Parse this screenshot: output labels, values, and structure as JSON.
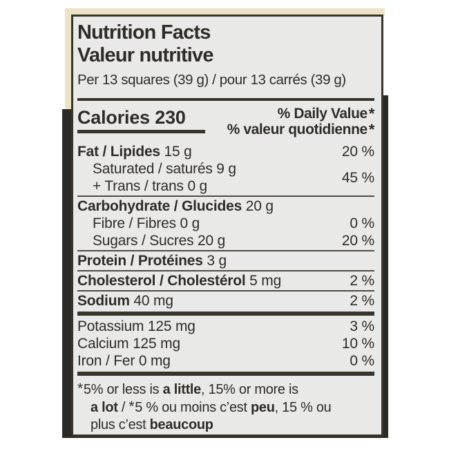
{
  "colors": {
    "label_background": "#e9e9e7",
    "label_border": "#38342b",
    "text": "#2e2c27",
    "package_dark": "#2c2a25",
    "package_cream": "#ece3c6"
  },
  "nutrition_label": {
    "title_en": "Nutrition Facts",
    "title_fr": "Valeur nutritive",
    "serving_line": "Per 13 squares (39 g) / pour 13 carrés (39 g)",
    "calories": {
      "label": "Calories",
      "value": "230"
    },
    "daily_value_header": {
      "en": "% Daily Value",
      "fr": "% valeur quotidienne",
      "star": "*"
    },
    "nutrient_rows": [
      {
        "style": "bold-lead",
        "bold": "Fat / Lipides",
        "rest": " 15 g",
        "dv": "20 %",
        "sep_after": ""
      },
      {
        "style": "sub-group",
        "lines": [
          "Saturated / saturés 9 g",
          "+ Trans / trans 0 g"
        ],
        "dv": "45 %",
        "sep_after": "thin"
      },
      {
        "style": "bold-lead",
        "bold": "Carbohydrate / Glucides",
        "rest": " 20 g",
        "dv": "",
        "sep_after": ""
      },
      {
        "style": "sub",
        "text": "Fibre / Fibres 0 g",
        "dv": "0 %",
        "sep_after": ""
      },
      {
        "style": "sub",
        "text": "Sugars / Sucres 20 g",
        "dv": "20 %",
        "sep_after": "thin"
      },
      {
        "style": "bold-lead",
        "bold": "Protein / Protéines",
        "rest": " 3 g",
        "dv": "",
        "sep_after": "thin"
      },
      {
        "style": "bold-lead",
        "bold": "Cholesterol / Cholestérol",
        "rest": " 5 mg",
        "dv": "2 %",
        "sep_after": "thin"
      },
      {
        "style": "bold-lead",
        "bold": "Sodium",
        "rest": " 40 mg",
        "dv": "2 %",
        "sep_after": "thick"
      },
      {
        "style": "plain",
        "text": "Potassium 125 mg",
        "dv": "3 %",
        "sep_after": ""
      },
      {
        "style": "plain",
        "text": "Calcium 125 mg",
        "dv": "10 %",
        "sep_after": ""
      },
      {
        "style": "plain",
        "text": "Iron / Fer 0 mg",
        "dv": "0 %",
        "sep_after": "thick"
      }
    ],
    "footnote_lines": [
      {
        "indented": false,
        "segments": [
          {
            "text": "*",
            "cls": "star"
          },
          {
            "text": "5% or less is ",
            "cls": ""
          },
          {
            "text": "a little",
            "cls": "b"
          },
          {
            "text": ", 15% or more is",
            "cls": ""
          }
        ]
      },
      {
        "indented": true,
        "segments": [
          {
            "text": "a lot",
            "cls": "b"
          },
          {
            "text": " / ",
            "cls": ""
          },
          {
            "text": "*",
            "cls": "star"
          },
          {
            "text": "5 % ou moins c’est ",
            "cls": ""
          },
          {
            "text": "peu",
            "cls": "b"
          },
          {
            "text": ", 15 % ou",
            "cls": ""
          }
        ]
      },
      {
        "indented": true,
        "segments": [
          {
            "text": "plus c’est ",
            "cls": ""
          },
          {
            "text": "beaucoup",
            "cls": "b"
          }
        ]
      }
    ]
  }
}
